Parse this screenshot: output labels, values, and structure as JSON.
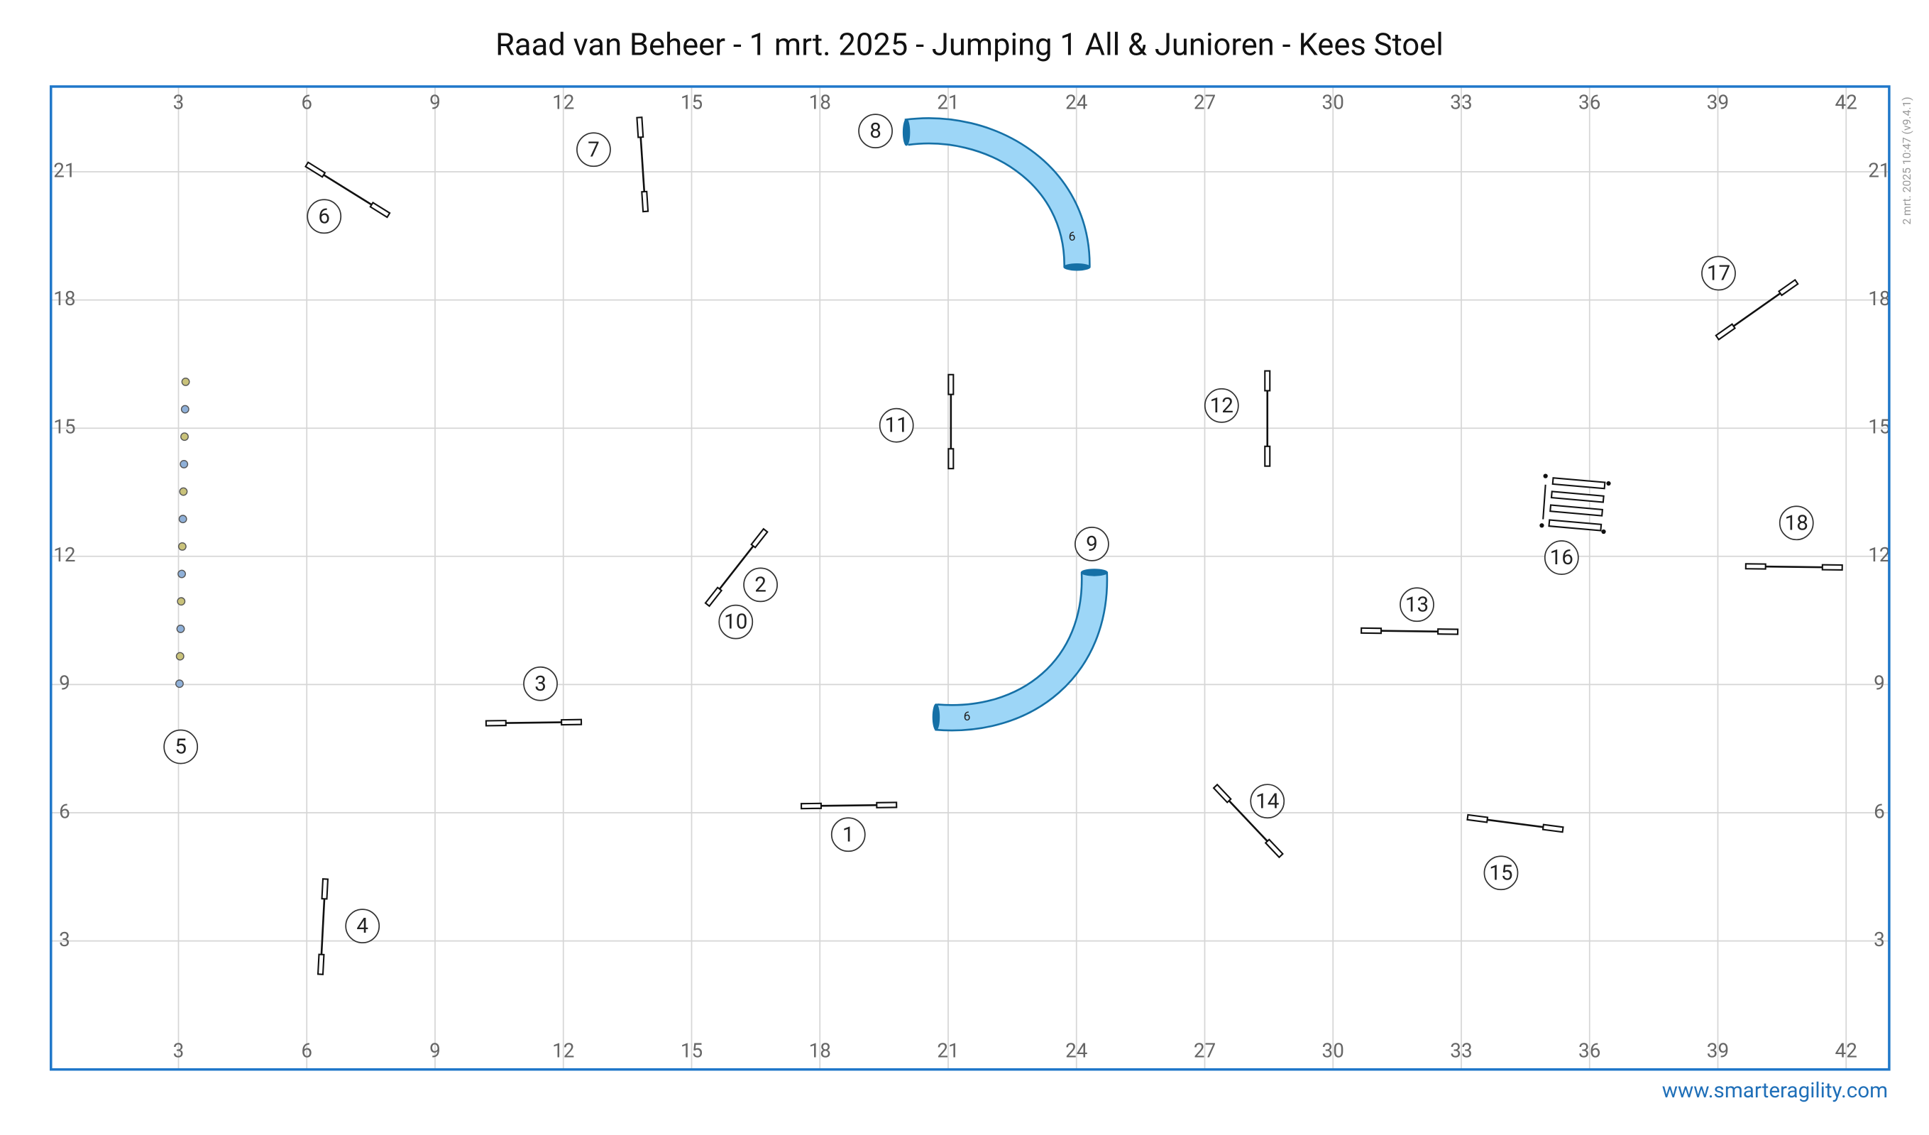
{
  "title": "Raad van Beheer - 1 mrt. 2025 - Jumping 1 All & Junioren - Kees Stoel",
  "x_ticks": [
    3,
    6,
    9,
    12,
    15,
    18,
    21,
    24,
    27,
    30,
    33,
    36,
    39,
    42
  ],
  "y_ticks": [
    3,
    6,
    9,
    12,
    15,
    18,
    21
  ],
  "obstacles": [
    1,
    2,
    3,
    4,
    5,
    6,
    7,
    8,
    9,
    10,
    11,
    12,
    13,
    14,
    15,
    16,
    17,
    18
  ],
  "tunnel_labels": [
    6,
    6
  ],
  "website": "www.smarteragility.com",
  "version": "2 mrt. 2025 10:47  (v9.4.1)"
}
